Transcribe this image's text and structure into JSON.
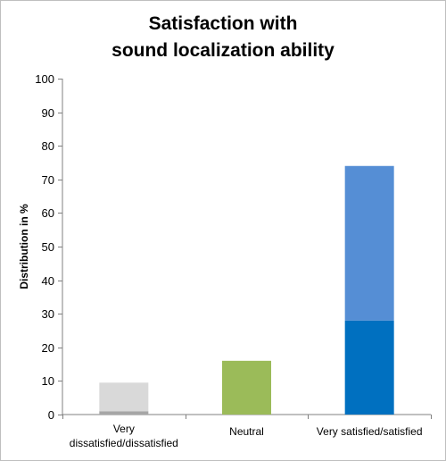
{
  "chart_data": {
    "type": "bar",
    "title_lines": [
      "Satisfaction with",
      "sound localization ability"
    ],
    "xlabel": "",
    "ylabel": "Distribution in %",
    "ylim": [
      0,
      100
    ],
    "yticks": [
      0,
      10,
      20,
      30,
      40,
      50,
      60,
      70,
      80,
      90,
      100
    ],
    "grid": false,
    "categories": [
      {
        "label_lines": [
          "Very",
          "dissatisfied/dissatisfied"
        ]
      },
      {
        "label_lines": [
          "Neutral"
        ]
      },
      {
        "label_lines": [
          "Very satisfied/satisfied"
        ]
      }
    ],
    "stacks": [
      {
        "category": 0,
        "segments": [
          {
            "value": 1,
            "color": "#a6a6a6"
          },
          {
            "value": 8.5,
            "color": "#d9d9d9"
          }
        ]
      },
      {
        "category": 1,
        "segments": [
          {
            "value": 16,
            "color": "#9bbb59"
          }
        ]
      },
      {
        "category": 2,
        "segments": [
          {
            "value": 28,
            "color": "#0070c0"
          },
          {
            "value": 46,
            "color": "#558ed5"
          }
        ]
      }
    ],
    "colors": {
      "axis": "#808080",
      "text": "#000000"
    }
  }
}
